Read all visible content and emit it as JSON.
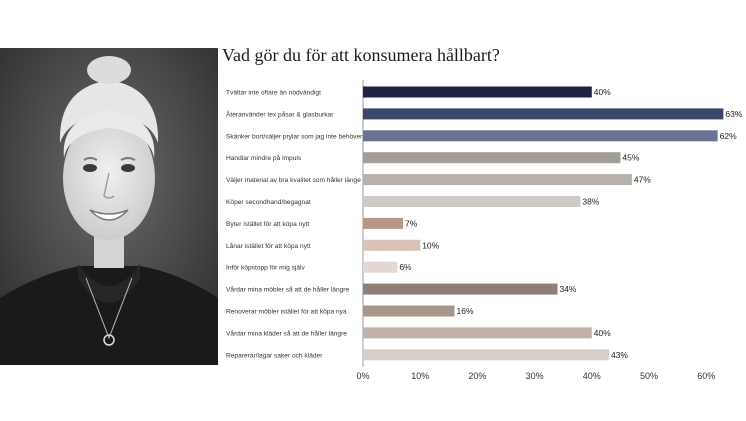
{
  "chart_data": {
    "type": "bar",
    "orientation": "horizontal",
    "title": "Vad gör du för att konsumera hållbart?",
    "categories": [
      "Tvättar inte oftare än nödvändigt",
      "Återanvänder tex påsar & glasburkar",
      "Skänker bort/säljer prylar som jag inte behöver",
      "Handlar mindre på impuls",
      "Väljer material av bra kvalitet som håller länge",
      "Köper secondhand/begagnat",
      "Byter istället för att köpa nytt",
      "Lånar istället för att köpa nytt",
      "Inför köpstopp för mig själv",
      "Vårdar mina möbler så att de håller längre",
      "Renoverar möbler istället för att köpa nya",
      "Vårdar mina kläder så att de håller längre",
      "Reparerar/lagar saker och kläder"
    ],
    "values": [
      40,
      63,
      62,
      45,
      47,
      38,
      7,
      10,
      6,
      34,
      16,
      40,
      43
    ],
    "value_labels": [
      "40%",
      "63%",
      "62%",
      "45%",
      "47%",
      "38%",
      "7%",
      "10%",
      "6%",
      "34%",
      "16%",
      "40%",
      "43%"
    ],
    "colors": [
      "#1e2440",
      "#3c4668",
      "#6a7391",
      "#a29d96",
      "#b6b1aa",
      "#cfcbc4",
      "#b8978a",
      "#d8c3b8",
      "#e2d7d1",
      "#8e7e75",
      "#a8968b",
      "#c0b2a8",
      "#d6cec8"
    ],
    "xticks": [
      "0%",
      "10%",
      "20%",
      "30%",
      "40%",
      "50%",
      "60%"
    ],
    "xlim": [
      0,
      65
    ],
    "grid": false,
    "legend": "none"
  },
  "photo": {
    "icon": "portrait-photo"
  }
}
